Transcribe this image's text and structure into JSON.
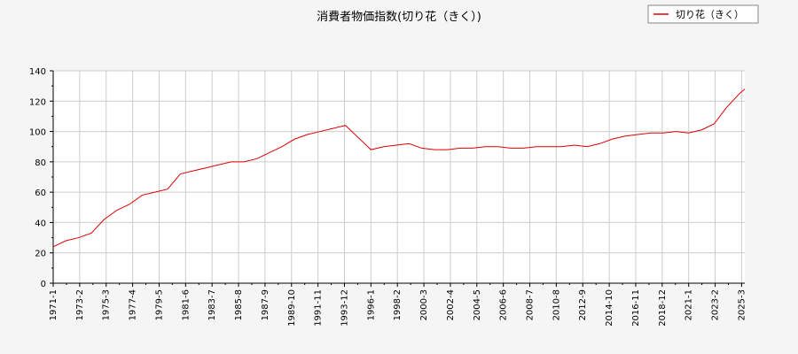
{
  "chart_data": {
    "type": "line",
    "title": "消費者物価指数(切り花（きく）)",
    "xlabel": "",
    "ylabel": "",
    "ylim": [
      0,
      140
    ],
    "yticks": [
      0,
      20,
      40,
      60,
      80,
      100,
      120,
      140
    ],
    "x_tick_labels": [
      "1971-1",
      "1973-2",
      "1975-3",
      "1977-4",
      "1979-5",
      "1981-6",
      "1983-7",
      "1985-8",
      "1987-9",
      "1989-10",
      "1991-11",
      "1993-12",
      "1996-1",
      "1998-2",
      "2000-3",
      "2002-4",
      "2004-5",
      "2006-6",
      "2008-7",
      "2010-8",
      "2012-9",
      "2014-10",
      "2016-11",
      "2018-12",
      "2021-1",
      "2023-2",
      "2025-3"
    ],
    "grid": true,
    "legend_position": "top-right",
    "series_color": "#dd0000",
    "series": [
      {
        "name": "切り花（きく）",
        "x": [
          "1971-1",
          "1972-1",
          "1973-1",
          "1974-1",
          "1975-1",
          "1976-1",
          "1977-1",
          "1978-1",
          "1979-1",
          "1980-1",
          "1981-1",
          "1982-1",
          "1983-1",
          "1984-1",
          "1985-1",
          "1986-1",
          "1987-1",
          "1988-1",
          "1989-1",
          "1990-1",
          "1991-1",
          "1992-1",
          "1993-1",
          "1994-1",
          "1995-1",
          "1996-1",
          "1997-1",
          "1998-1",
          "1999-1",
          "2000-1",
          "2001-1",
          "2002-1",
          "2003-1",
          "2004-1",
          "2005-1",
          "2006-1",
          "2007-1",
          "2008-1",
          "2009-1",
          "2010-1",
          "2011-1",
          "2012-1",
          "2013-1",
          "2014-1",
          "2015-1",
          "2016-1",
          "2017-1",
          "2018-1",
          "2019-1",
          "2020-1",
          "2021-1",
          "2022-1",
          "2023-1",
          "2024-1",
          "2025-1",
          "2025-6"
        ],
        "values": [
          24,
          28,
          30,
          33,
          42,
          48,
          52,
          58,
          60,
          62,
          72,
          74,
          76,
          78,
          80,
          80,
          82,
          86,
          90,
          95,
          98,
          100,
          102,
          104,
          96,
          88,
          90,
          91,
          92,
          89,
          88,
          88,
          89,
          89,
          90,
          90,
          89,
          89,
          90,
          90,
          90,
          91,
          90,
          92,
          95,
          97,
          98,
          99,
          99,
          100,
          99,
          101,
          105,
          116,
          125,
          128
        ]
      }
    ]
  }
}
